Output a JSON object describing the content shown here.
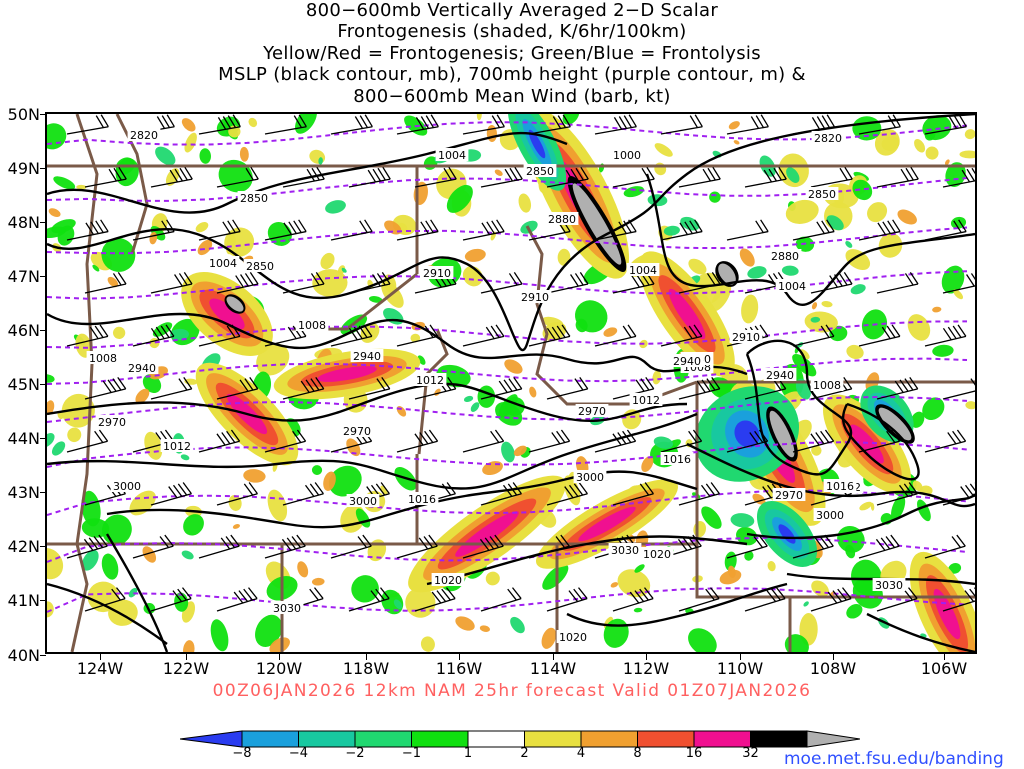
{
  "title_lines": [
    "800−600mb Vertically Averaged 2−D Scalar",
    "Frontogenesis (shaded, K/6hr/100km)",
    "Yellow/Red = Frontogenesis;  Green/Blue = Frontolysis",
    "MSLP (black contour, mb), 700mb height (purple contour, m) &",
    "800−600mb Mean Wind (barb, kt)"
  ],
  "lat_labels": [
    "50N",
    "49N",
    "48N",
    "47N",
    "46N",
    "45N",
    "44N",
    "43N",
    "42N",
    "41N",
    "40N"
  ],
  "lon_labels": [
    "124W",
    "122W",
    "120W",
    "118W",
    "116W",
    "114W",
    "112W",
    "110W",
    "108W",
    "106W"
  ],
  "forecast_line": "00Z06JAN2026 12km NAM 25hr forecast Valid 01Z07JAN2026",
  "colorbar": {
    "ticks": [
      "−8",
      "−4",
      "−2",
      "−1",
      "1",
      "2",
      "4",
      "8",
      "16",
      "32"
    ],
    "colors": [
      "#2a3cf0",
      "#1aa0dc",
      "#18c8a0",
      "#20d870",
      "#10e010",
      "#ffffff",
      "#e8e040",
      "#f0a030",
      "#f05030",
      "#f01090",
      "#000000",
      "#b0b0b0"
    ]
  },
  "mslp_labels": [
    "1004",
    "1000",
    "1004",
    "1004",
    "1004",
    "1008",
    "1008",
    "1008",
    "1012",
    "1012",
    "1012",
    "1012",
    "1016",
    "1016",
    "1016",
    "1020",
    "1020",
    "1020",
    "1008"
  ],
  "height_labels": [
    "2820",
    "2820",
    "2850",
    "2850",
    "2850",
    "2850",
    "2880",
    "2880",
    "2910",
    "2910",
    "2910",
    "2940",
    "2940",
    "2940",
    "2970",
    "2970",
    "2970",
    "2970",
    "3000",
    "3000",
    "3000",
    "3000",
    "3030",
    "3030",
    "3030",
    "2940",
    "2940"
  ],
  "credit": "moe.met.fsu.edu/banding",
  "colors": {
    "mslp": "#000000",
    "height": "#a020f0",
    "border": "#7a5a48",
    "forecast": "#ff6060",
    "credit": "#3050ff"
  }
}
